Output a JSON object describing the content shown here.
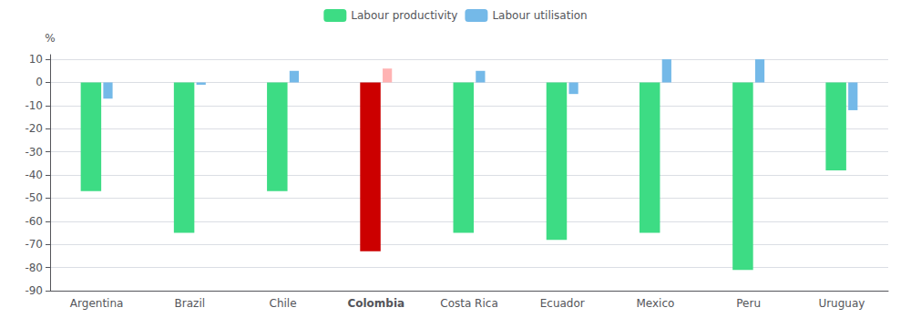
{
  "chart_data": {
    "type": "bar",
    "categories": [
      "Argentina",
      "Brazil",
      "Chile",
      "Colombia",
      "Costa Rica",
      "Ecuador",
      "Mexico",
      "Peru",
      "Uruguay"
    ],
    "series": [
      {
        "name": "Labour productivity",
        "color": "#3ddc84",
        "colors": [
          "#3ddc84",
          "#3ddc84",
          "#3ddc84",
          "#cc0000",
          "#3ddc84",
          "#3ddc84",
          "#3ddc84",
          "#3ddc84",
          "#3ddc84"
        ],
        "values": [
          -47,
          -65,
          -47,
          -73,
          -65,
          -68,
          -65,
          -81,
          -38
        ]
      },
      {
        "name": "Labour utilisation",
        "color": "#74b9e8",
        "colors": [
          "#74b9e8",
          "#74b9e8",
          "#74b9e8",
          "#ffb3b3",
          "#74b9e8",
          "#74b9e8",
          "#74b9e8",
          "#74b9e8",
          "#74b9e8"
        ],
        "values": [
          -7,
          -1,
          5,
          6,
          5,
          -5,
          10,
          10,
          -12
        ]
      }
    ],
    "ylabel": "%",
    "ylim": [
      -90,
      12
    ],
    "yticks": [
      -90,
      -80,
      -70,
      -60,
      -50,
      -40,
      -30,
      -20,
      -10,
      0,
      10
    ],
    "grid": true,
    "legend": "top"
  }
}
